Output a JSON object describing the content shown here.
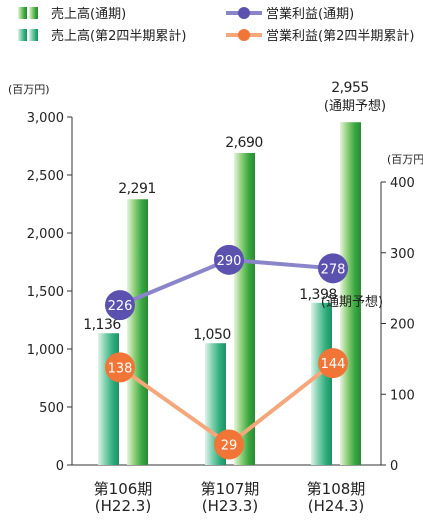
{
  "chart_data": {
    "type": "bar",
    "categories": [
      "第106期\n(H22.3)",
      "第107期\n(H23.3)",
      "第108期\n(H24.3)"
    ],
    "legend": [
      {
        "label": "売上高(通期)",
        "kind": "bar",
        "color": "#3aa843"
      },
      {
        "label": "営業利益(通期)",
        "kind": "line",
        "color": "#8a84c8",
        "marker_color": "#5b52b0"
      },
      {
        "label": "売上高(第2四半期累計)",
        "kind": "bar",
        "color": "#2fae7e"
      },
      {
        "label": "営業利益(第2四半期累計)",
        "kind": "line",
        "color": "#f4a77a",
        "marker_color": "#f07536"
      }
    ],
    "y_left": {
      "unit": "(百万円)",
      "range": [
        0,
        3000
      ],
      "ticks": [
        0,
        500,
        1000,
        1500,
        2000,
        2500,
        3000
      ],
      "tick_labels": [
        "0",
        "500",
        "1,000",
        "1,500",
        "2,000",
        "2,500",
        "3,000"
      ]
    },
    "y_right": {
      "unit": "(百万円)",
      "range": [
        0,
        400
      ],
      "ticks": [
        0,
        100,
        200,
        300,
        400
      ],
      "tick_labels": [
        "0",
        "100",
        "200",
        "300",
        "400"
      ]
    },
    "series": [
      {
        "name": "売上高(第2四半期累計)",
        "type": "bar",
        "axis": "left",
        "values": [
          1136,
          1050,
          1398
        ],
        "labels": [
          "1,136",
          "1,050",
          "1,398"
        ],
        "color": "#2fae7e"
      },
      {
        "name": "売上高(通期)",
        "type": "bar",
        "axis": "left",
        "values": [
          2291,
          2690,
          2955
        ],
        "labels": [
          "2,291",
          "2,690",
          "2,955"
        ],
        "color": "#3aa843"
      },
      {
        "name": "営業利益(通期)",
        "type": "line",
        "axis": "right",
        "values": [
          226,
          290,
          278
        ],
        "labels": [
          "226",
          "290",
          "278"
        ],
        "color": "#8a84c8",
        "marker_color": "#5b52b0"
      },
      {
        "name": "営業利益(第2四半期累計)",
        "type": "line",
        "axis": "right",
        "values": [
          138,
          29,
          144
        ],
        "labels": [
          "138",
          "29",
          "144"
        ],
        "color": "#f4a77a",
        "marker_color": "#f07536"
      }
    ],
    "annotations": {
      "forecast_note": "(通期予想)"
    }
  }
}
